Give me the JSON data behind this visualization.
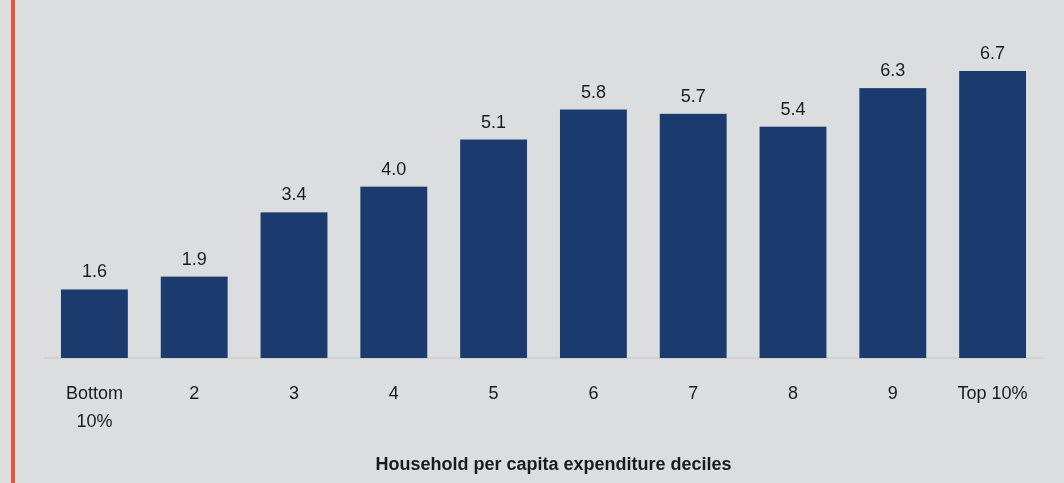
{
  "chart_data": {
    "type": "bar",
    "xlabel": "Household per capita expenditure deciles",
    "categories": [
      "Bottom 10%",
      "2",
      "3",
      "4",
      "5",
      "6",
      "7",
      "8",
      "9",
      "Top 10%"
    ],
    "values": [
      1.6,
      1.9,
      3.4,
      4.0,
      5.1,
      5.8,
      5.7,
      5.4,
      6.3,
      6.7
    ],
    "value_labels": [
      "1.6",
      "1.9",
      "3.4",
      "4.0",
      "5.1",
      "5.8",
      "5.7",
      "5.4",
      "6.3",
      "6.7"
    ],
    "color": "#1b3a6d"
  }
}
